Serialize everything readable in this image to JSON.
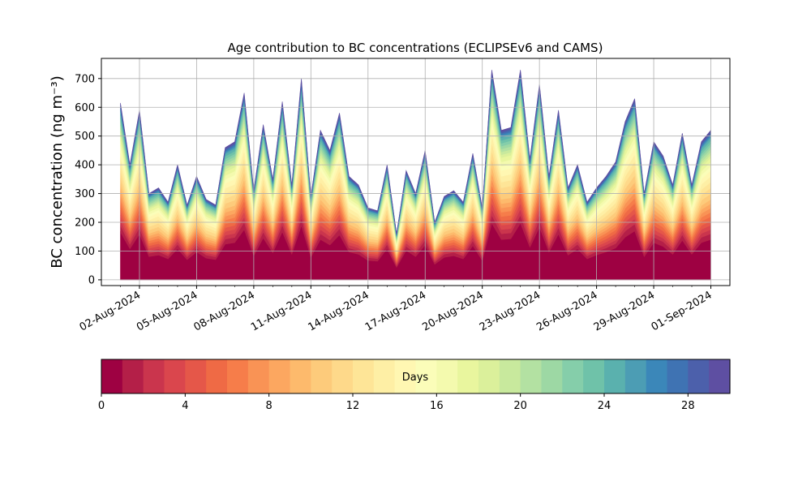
{
  "chart_data": {
    "type": "area",
    "stacked": true,
    "title": "Age contribution to BC concentrations (ECLIPSEv6 and CAMS)",
    "ylabel": "BC concentration (ng m⁻³)",
    "xlabel": "",
    "grid": true,
    "x_range": [
      "2024-07-31",
      "2024-09-02"
    ],
    "ylim": [
      -20,
      770
    ],
    "x_tick_labels": [
      "02-Aug-2024",
      "05-Aug-2024",
      "08-Aug-2024",
      "11-Aug-2024",
      "14-Aug-2024",
      "17-Aug-2024",
      "20-Aug-2024",
      "23-Aug-2024",
      "26-Aug-2024",
      "29-Aug-2024",
      "01-Sep-2024"
    ],
    "x_tick_dates": [
      "2024-08-02",
      "2024-08-05",
      "2024-08-08",
      "2024-08-11",
      "2024-08-14",
      "2024-08-17",
      "2024-08-20",
      "2024-08-23",
      "2024-08-26",
      "2024-08-29",
      "2024-09-01"
    ],
    "y_ticks": [
      0,
      100,
      200,
      300,
      400,
      500,
      600,
      700
    ],
    "total_series": {
      "x": [
        "2024-08-01",
        "2024-08-01 12:00",
        "2024-08-02",
        "2024-08-02 12:00",
        "2024-08-03",
        "2024-08-03 12:00",
        "2024-08-04",
        "2024-08-04 12:00",
        "2024-08-05",
        "2024-08-05 12:00",
        "2024-08-06",
        "2024-08-06 12:00",
        "2024-08-07",
        "2024-08-07 12:00",
        "2024-08-08",
        "2024-08-08 12:00",
        "2024-08-09",
        "2024-08-09 12:00",
        "2024-08-10",
        "2024-08-10 12:00",
        "2024-08-11",
        "2024-08-11 12:00",
        "2024-08-12",
        "2024-08-12 12:00",
        "2024-08-13",
        "2024-08-13 12:00",
        "2024-08-14",
        "2024-08-14 12:00",
        "2024-08-15",
        "2024-08-15 12:00",
        "2024-08-16",
        "2024-08-16 12:00",
        "2024-08-17",
        "2024-08-17 12:00",
        "2024-08-18",
        "2024-08-18 12:00",
        "2024-08-19",
        "2024-08-19 12:00",
        "2024-08-20",
        "2024-08-20 12:00",
        "2024-08-21",
        "2024-08-21 12:00",
        "2024-08-22",
        "2024-08-22 12:00",
        "2024-08-23",
        "2024-08-23 12:00",
        "2024-08-24",
        "2024-08-24 12:00",
        "2024-08-25",
        "2024-08-25 12:00",
        "2024-08-26",
        "2024-08-26 12:00",
        "2024-08-27",
        "2024-08-27 12:00",
        "2024-08-28",
        "2024-08-28 12:00",
        "2024-08-29",
        "2024-08-29 12:00",
        "2024-08-30",
        "2024-08-30 12:00",
        "2024-08-31",
        "2024-08-31 12:00",
        "2024-09-01"
      ],
      "values": [
        615,
        400,
        590,
        300,
        320,
        270,
        400,
        260,
        360,
        280,
        260,
        460,
        480,
        650,
        310,
        540,
        350,
        620,
        330,
        700,
        290,
        520,
        450,
        580,
        360,
        330,
        250,
        240,
        400,
        160,
        380,
        300,
        450,
        200,
        290,
        310,
        270,
        440,
        250,
        730,
        520,
        530,
        730,
        420,
        680,
        360,
        590,
        320,
        400,
        270,
        320,
        360,
        410,
        550,
        630,
        300,
        480,
        430,
        330,
        510,
        330,
        480,
        520
      ]
    },
    "age_bin_fractions_percent": [
      28,
      4,
      3,
      3,
      3,
      3,
      3,
      3,
      3,
      3,
      4,
      4,
      4,
      4,
      4,
      3,
      3,
      3,
      2,
      2,
      2,
      2,
      2,
      2,
      2,
      1,
      1,
      1,
      1,
      1
    ],
    "colorbar": {
      "label": "Days",
      "ticks": [
        0,
        4,
        8,
        12,
        16,
        20,
        24,
        28
      ],
      "range": [
        0,
        30
      ],
      "colors": [
        "#9e0142",
        "#b41f48",
        "#ca354d",
        "#da464d",
        "#e55749",
        "#ef6a45",
        "#f67d4a",
        "#f99355",
        "#fca760",
        "#fdba6c",
        "#fdcb7b",
        "#fed98a",
        "#fee597",
        "#feefa5",
        "#fff7b2",
        "#fbfdb9",
        "#f4faae",
        "#e9f69e",
        "#dbf09b",
        "#c8e99d",
        "#b3e1a2",
        "#9dd8a4",
        "#85ceaa",
        "#6fc2a9",
        "#5ab1ae",
        "#4c9db4",
        "#3b87b9",
        "#3f73b3",
        "#4c60ab",
        "#5e4fa2"
      ]
    }
  }
}
